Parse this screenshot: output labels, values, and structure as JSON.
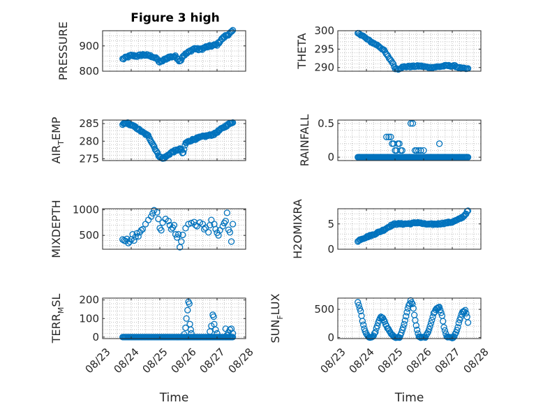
{
  "figure_title": "Figure 3 high",
  "colors": {
    "marker": "#0072bd",
    "axes": "#262626",
    "grid": "#bfbfbf"
  },
  "chart_data": [
    {
      "id": "pressure",
      "type": "scatter",
      "title": "Figure 3 high",
      "ylabel": "PRESSURE",
      "ylabel_sub": "",
      "ylim": [
        800,
        960
      ],
      "yticks": [
        800,
        900
      ],
      "ytick_labels": [
        "800",
        "900"
      ],
      "xlim": [
        0,
        5
      ],
      "xticks": [
        0,
        1,
        2,
        3,
        4,
        5
      ],
      "xtick_labels": [
        "08/23",
        "08/24",
        "08/25",
        "08/26",
        "08/27",
        "08/28"
      ],
      "show_xticklabels": false,
      "xlabel": "",
      "keypoints": [
        [
          0.7,
          848
        ],
        [
          0.9,
          858
        ],
        [
          1.0,
          862
        ],
        [
          1.2,
          860
        ],
        [
          1.4,
          865
        ],
        [
          1.6,
          862
        ],
        [
          1.75,
          858
        ],
        [
          1.9,
          848
        ],
        [
          2.0,
          835
        ],
        [
          2.15,
          845
        ],
        [
          2.3,
          855
        ],
        [
          2.45,
          858
        ],
        [
          2.55,
          858
        ],
        [
          2.65,
          847
        ],
        [
          2.7,
          838
        ],
        [
          2.8,
          860
        ],
        [
          3.0,
          875
        ],
        [
          3.2,
          890
        ],
        [
          3.4,
          885
        ],
        [
          3.6,
          895
        ],
        [
          3.8,
          900
        ],
        [
          4.0,
          905
        ],
        [
          4.15,
          925
        ],
        [
          4.3,
          940
        ],
        [
          4.45,
          950
        ],
        [
          4.55,
          958
        ]
      ],
      "n": 120,
      "noise": 4
    },
    {
      "id": "theta",
      "type": "scatter",
      "title": "",
      "ylabel": "THETA",
      "ylabel_sub": "",
      "ylim": [
        289,
        300
      ],
      "yticks": [
        290,
        295,
        300
      ],
      "ytick_labels": [
        "290",
        "295",
        "300"
      ],
      "xlim": [
        0,
        5
      ],
      "xticks": [
        0,
        1,
        2,
        3,
        4,
        5
      ],
      "xtick_labels": [
        "08/23",
        "08/24",
        "08/25",
        "08/26",
        "08/27",
        "08/28"
      ],
      "show_xticklabels": false,
      "xlabel": "",
      "keypoints": [
        [
          0.7,
          299.3
        ],
        [
          0.85,
          298.8
        ],
        [
          1.0,
          297.8
        ],
        [
          1.2,
          296.8
        ],
        [
          1.4,
          296.0
        ],
        [
          1.6,
          294.8
        ],
        [
          1.75,
          293.0
        ],
        [
          1.9,
          291.5
        ],
        [
          2.0,
          289.8
        ],
        [
          2.1,
          289.6
        ],
        [
          2.3,
          290.2
        ],
        [
          2.6,
          290.3
        ],
        [
          2.9,
          290.4
        ],
        [
          3.2,
          290.0
        ],
        [
          3.5,
          290.2
        ],
        [
          3.8,
          290.5
        ],
        [
          4.1,
          290.4
        ],
        [
          4.3,
          289.8
        ],
        [
          4.55,
          289.6
        ]
      ],
      "n": 110,
      "noise": 0.2
    },
    {
      "id": "air_temp",
      "type": "scatter",
      "title": "",
      "ylabel": "AIR",
      "ylabel_sub": "T",
      "ylabel_rest": "EMP",
      "ylim": [
        274.5,
        286
      ],
      "yticks": [
        275,
        280,
        285
      ],
      "ytick_labels": [
        "275",
        "280",
        "285"
      ],
      "xlim": [
        0,
        5
      ],
      "xticks": [
        0,
        1,
        2,
        3,
        4,
        5
      ],
      "xtick_labels": [
        "08/23",
        "08/24",
        "08/25",
        "08/26",
        "08/27",
        "08/28"
      ],
      "show_xticklabels": false,
      "xlabel": "",
      "keypoints": [
        [
          0.7,
          284.8
        ],
        [
          0.85,
          285.2
        ],
        [
          1.0,
          284.6
        ],
        [
          1.2,
          283.7
        ],
        [
          1.4,
          282.5
        ],
        [
          1.6,
          281.5
        ],
        [
          1.8,
          278.5
        ],
        [
          1.95,
          276.0
        ],
        [
          2.1,
          275.0
        ],
        [
          2.25,
          275.8
        ],
        [
          2.4,
          276.8
        ],
        [
          2.6,
          277.5
        ],
        [
          2.75,
          277.8
        ],
        [
          2.8,
          276.0
        ],
        [
          2.9,
          279.5
        ],
        [
          3.1,
          280.3
        ],
        [
          3.3,
          280.8
        ],
        [
          3.5,
          281.3
        ],
        [
          3.7,
          281.6
        ],
        [
          3.9,
          282.0
        ],
        [
          4.1,
          283.2
        ],
        [
          4.3,
          284.3
        ],
        [
          4.55,
          285.5
        ]
      ],
      "n": 130,
      "noise": 0.25
    },
    {
      "id": "rainfall",
      "type": "scatter",
      "title": "",
      "ylabel": "RAINFALL",
      "ylabel_sub": "",
      "ylim": [
        -0.05,
        0.55
      ],
      "yticks": [
        0,
        0.5
      ],
      "ytick_labels": [
        "0",
        "0.5"
      ],
      "xlim": [
        0,
        5
      ],
      "xticks": [
        0,
        1,
        2,
        3,
        4,
        5
      ],
      "xtick_labels": [
        "08/23",
        "08/24",
        "08/25",
        "08/26",
        "08/27",
        "08/28"
      ],
      "show_xticklabels": false,
      "xlabel": "",
      "baseline": {
        "x_start": 0.7,
        "x_end": 4.55,
        "y": 0,
        "n": 130
      },
      "points": [
        [
          1.7,
          0.3
        ],
        [
          1.78,
          0.3
        ],
        [
          1.85,
          0.3
        ],
        [
          1.9,
          0.2
        ],
        [
          1.95,
          0.2
        ],
        [
          2.0,
          0.1
        ],
        [
          2.05,
          0.1
        ],
        [
          2.1,
          0.2
        ],
        [
          2.15,
          0.2
        ],
        [
          2.2,
          0.1
        ],
        [
          2.25,
          0.1
        ],
        [
          2.3,
          0.0
        ],
        [
          2.0,
          0.0
        ],
        [
          2.1,
          0.0
        ],
        [
          2.55,
          0.5
        ],
        [
          2.62,
          0.5
        ],
        [
          2.7,
          0.1
        ],
        [
          2.75,
          0.1
        ],
        [
          2.82,
          0.1
        ],
        [
          2.9,
          0.1
        ],
        [
          3.0,
          0.1
        ],
        [
          3.55,
          0.2
        ]
      ]
    },
    {
      "id": "mixdepth",
      "type": "scatter",
      "title": "",
      "ylabel": "MIXDEPTH",
      "ylabel_sub": "",
      "ylim": [
        230,
        1020
      ],
      "yticks": [
        500,
        1000
      ],
      "ytick_labels": [
        "500",
        "1000"
      ],
      "xlim": [
        0,
        5
      ],
      "xticks": [
        0,
        1,
        2,
        3,
        4,
        5
      ],
      "xtick_labels": [
        "08/23",
        "08/24",
        "08/25",
        "08/26",
        "08/27",
        "08/28"
      ],
      "show_xticklabels": false,
      "xlabel": "",
      "points": [
        [
          0.7,
          420
        ],
        [
          0.75,
          400
        ],
        [
          0.8,
          390
        ],
        [
          0.85,
          430
        ],
        [
          0.9,
          350
        ],
        [
          0.95,
          380
        ],
        [
          1.0,
          420
        ],
        [
          1.05,
          520
        ],
        [
          1.1,
          400
        ],
        [
          1.15,
          470
        ],
        [
          1.2,
          540
        ],
        [
          1.25,
          480
        ],
        [
          1.3,
          560
        ],
        [
          1.35,
          600
        ],
        [
          1.4,
          620
        ],
        [
          1.5,
          720
        ],
        [
          1.6,
          800
        ],
        [
          1.7,
          870
        ],
        [
          1.75,
          930
        ],
        [
          1.8,
          990
        ],
        [
          1.9,
          950
        ],
        [
          1.95,
          820
        ],
        [
          2.0,
          640
        ],
        [
          2.05,
          600
        ],
        [
          2.1,
          750
        ],
        [
          2.2,
          820
        ],
        [
          2.3,
          780
        ],
        [
          2.35,
          700
        ],
        [
          2.4,
          620
        ],
        [
          2.45,
          650
        ],
        [
          2.5,
          700
        ],
        [
          2.55,
          520
        ],
        [
          2.6,
          460
        ],
        [
          2.65,
          520
        ],
        [
          2.7,
          270
        ],
        [
          2.75,
          380
        ],
        [
          2.8,
          510
        ],
        [
          2.9,
          640
        ],
        [
          3.0,
          720
        ],
        [
          3.1,
          740
        ],
        [
          3.2,
          760
        ],
        [
          3.25,
          700
        ],
        [
          3.3,
          680
        ],
        [
          3.4,
          750
        ],
        [
          3.5,
          720
        ],
        [
          3.55,
          620
        ],
        [
          3.6,
          650
        ],
        [
          3.7,
          560
        ],
        [
          3.75,
          700
        ],
        [
          3.8,
          800
        ],
        [
          3.9,
          720
        ],
        [
          3.95,
          620
        ],
        [
          4.0,
          550
        ],
        [
          4.05,
          500
        ],
        [
          4.1,
          600
        ],
        [
          4.2,
          680
        ],
        [
          4.25,
          740
        ],
        [
          4.3,
          780
        ],
        [
          4.35,
          940
        ],
        [
          4.4,
          610
        ],
        [
          4.45,
          560
        ],
        [
          4.5,
          380
        ],
        [
          4.55,
          720
        ]
      ]
    },
    {
      "id": "h2omixra",
      "type": "scatter",
      "title": "",
      "ylabel": "H2OMIXRA",
      "ylabel_sub": "",
      "ylim": [
        0,
        8
      ],
      "yticks": [
        0,
        5
      ],
      "ytick_labels": [
        "0",
        "5"
      ],
      "xlim": [
        0,
        5
      ],
      "xticks": [
        0,
        1,
        2,
        3,
        4,
        5
      ],
      "xtick_labels": [
        "08/23",
        "08/24",
        "08/25",
        "08/26",
        "08/27",
        "08/28"
      ],
      "show_xticklabels": false,
      "xlabel": "",
      "keypoints": [
        [
          0.7,
          1.5
        ],
        [
          0.8,
          2.0
        ],
        [
          1.0,
          2.4
        ],
        [
          1.2,
          2.8
        ],
        [
          1.4,
          3.3
        ],
        [
          1.6,
          3.8
        ],
        [
          1.8,
          4.5
        ],
        [
          1.9,
          4.8
        ],
        [
          2.0,
          5.0
        ],
        [
          2.3,
          5.0
        ],
        [
          2.6,
          5.1
        ],
        [
          2.8,
          5.3
        ],
        [
          3.0,
          5.0
        ],
        [
          3.2,
          4.9
        ],
        [
          3.5,
          5.0
        ],
        [
          3.8,
          5.2
        ],
        [
          4.0,
          5.4
        ],
        [
          4.2,
          5.8
        ],
        [
          4.4,
          6.5
        ],
        [
          4.55,
          7.6
        ]
      ],
      "n": 120,
      "noise": 0.15
    },
    {
      "id": "terr_msl",
      "type": "scatter",
      "title": "",
      "ylabel": "TERR",
      "ylabel_sub": "M",
      "ylabel_rest": "SL",
      "ylim": [
        -8,
        210
      ],
      "yticks": [
        0,
        100,
        200
      ],
      "ytick_labels": [
        "0",
        "100",
        "200"
      ],
      "xlim": [
        0,
        5
      ],
      "xticks": [
        0,
        1,
        2,
        3,
        4,
        5
      ],
      "xtick_labels": [
        "08/23",
        "08/24",
        "08/25",
        "08/26",
        "08/27",
        "08/28"
      ],
      "show_xticklabels": true,
      "xlabel": "Time",
      "baseline": {
        "x_start": 0.7,
        "x_end": 4.55,
        "y": 0,
        "n": 125
      },
      "points": [
        [
          2.85,
          15
        ],
        [
          2.9,
          50
        ],
        [
          2.93,
          100
        ],
        [
          2.97,
          145
        ],
        [
          3.0,
          190
        ],
        [
          3.03,
          180
        ],
        [
          3.05,
          70
        ],
        [
          3.08,
          40
        ],
        [
          3.1,
          20
        ],
        [
          3.75,
          30
        ],
        [
          3.8,
          60
        ],
        [
          3.85,
          120
        ],
        [
          3.88,
          110
        ],
        [
          3.9,
          70
        ],
        [
          3.95,
          40
        ],
        [
          4.0,
          20
        ],
        [
          4.35,
          10
        ],
        [
          4.4,
          25
        ],
        [
          4.45,
          40
        ],
        [
          4.5,
          45
        ],
        [
          4.55,
          20
        ],
        [
          4.3,
          45
        ]
      ]
    },
    {
      "id": "sun_flux",
      "type": "scatter",
      "title": "",
      "ylabel": "SUN",
      "ylabel_sub": "F",
      "ylabel_rest": "LUX",
      "ylim": [
        -20,
        700
      ],
      "yticks": [
        0,
        500
      ],
      "ytick_labels": [
        "0",
        "500"
      ],
      "xlim": [
        0,
        5
      ],
      "xticks": [
        0,
        1,
        2,
        3,
        4,
        5
      ],
      "xtick_labels": [
        "08/23",
        "08/24",
        "08/25",
        "08/26",
        "08/27",
        "08/28"
      ],
      "show_xticklabels": true,
      "xlabel": "Time",
      "keypoints": [
        [
          0.7,
          620
        ],
        [
          0.8,
          460
        ],
        [
          0.9,
          200
        ],
        [
          1.0,
          60
        ],
        [
          1.1,
          0
        ],
        [
          1.2,
          0
        ],
        [
          1.3,
          80
        ],
        [
          1.4,
          250
        ],
        [
          1.5,
          380
        ],
        [
          1.6,
          320
        ],
        [
          1.7,
          200
        ],
        [
          1.8,
          120
        ],
        [
          1.9,
          40
        ],
        [
          2.0,
          0
        ],
        [
          2.15,
          0
        ],
        [
          2.25,
          120
        ],
        [
          2.35,
          300
        ],
        [
          2.45,
          520
        ],
        [
          2.55,
          660
        ],
        [
          2.62,
          580
        ],
        [
          2.7,
          320
        ],
        [
          2.78,
          100
        ],
        [
          2.85,
          0
        ],
        [
          3.05,
          0
        ],
        [
          3.15,
          80
        ],
        [
          3.25,
          250
        ],
        [
          3.35,
          420
        ],
        [
          3.45,
          520
        ],
        [
          3.55,
          540
        ],
        [
          3.65,
          380
        ],
        [
          3.72,
          150
        ],
        [
          3.8,
          20
        ],
        [
          3.9,
          0
        ],
        [
          4.05,
          0
        ],
        [
          4.15,
          100
        ],
        [
          4.25,
          300
        ],
        [
          4.35,
          440
        ],
        [
          4.45,
          480
        ],
        [
          4.5,
          420
        ],
        [
          4.55,
          260
        ]
      ],
      "n": 120,
      "noise": 10
    }
  ]
}
